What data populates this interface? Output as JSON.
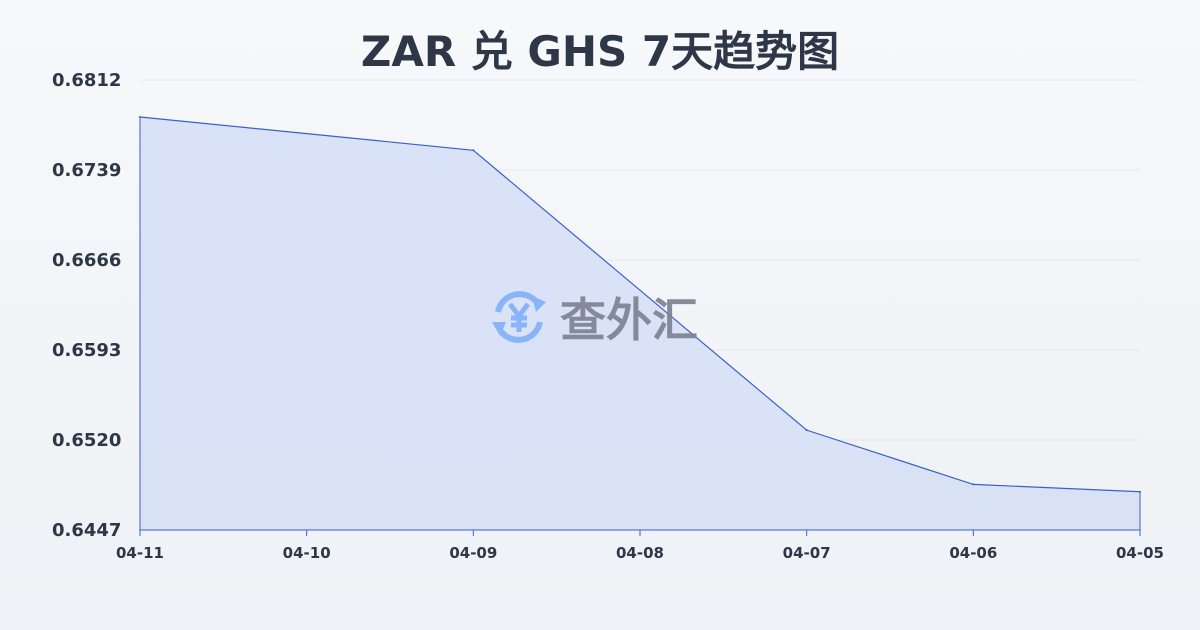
{
  "chart_data": {
    "type": "area",
    "title": "ZAR 兑 GHS 7天趋势图",
    "xlabel": "",
    "ylabel": "",
    "categories": [
      "04-11",
      "04-10",
      "04-09",
      "04-08",
      "04-07",
      "04-06",
      "04-05"
    ],
    "series": [
      {
        "points": [
          {
            "x": "04-11",
            "y": 0.6782
          },
          {
            "x": "04-09",
            "y": 0.6755
          },
          {
            "x": "04-07",
            "y": 0.6528
          },
          {
            "x": "04-06",
            "y": 0.6484
          },
          {
            "x": "04-05",
            "y": 0.6478
          }
        ]
      }
    ],
    "yticks": [
      "0.6812",
      "0.6739",
      "0.6666",
      "0.6593",
      "0.6520",
      "0.6447"
    ],
    "ylim": [
      0.6447,
      0.6812
    ],
    "grid": true,
    "colors": {
      "line": "#3a5fcd",
      "fill": "#d6e0f5",
      "grid": "#e2e6ec"
    }
  },
  "watermark": {
    "text": "查外汇",
    "icon": "yen-exchange-icon",
    "icon_color": "#8ab4f8"
  }
}
